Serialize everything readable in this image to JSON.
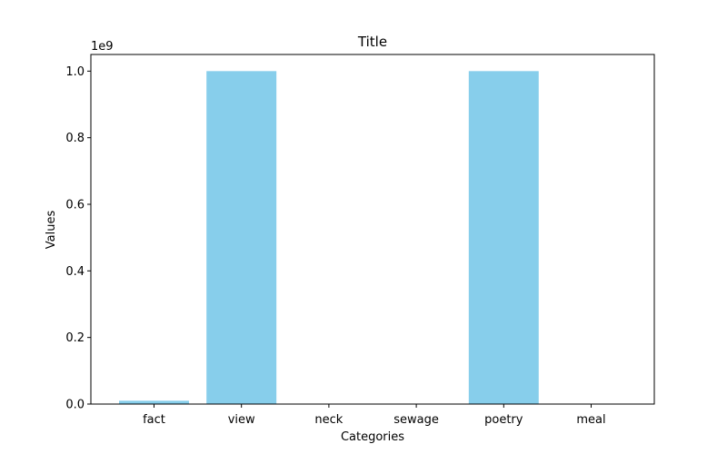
{
  "chart_data": {
    "type": "bar",
    "title": "Title",
    "xlabel": "Categories",
    "ylabel": "Values",
    "scale_label": "1e9",
    "categories": [
      "fact",
      "view",
      "neck",
      "sewage",
      "poetry",
      "meal"
    ],
    "values": [
      10000000,
      1000000000,
      0,
      0,
      1000000000,
      0
    ],
    "ylim": [
      0,
      1050000000
    ],
    "yticks": [
      0,
      200000000,
      400000000,
      600000000,
      800000000,
      1000000000
    ],
    "ytick_labels": [
      "0.0",
      "0.2",
      "0.4",
      "0.6",
      "0.8",
      "1.0"
    ],
    "bar_color": "#87ceeb",
    "grid": false,
    "legend": "none"
  }
}
